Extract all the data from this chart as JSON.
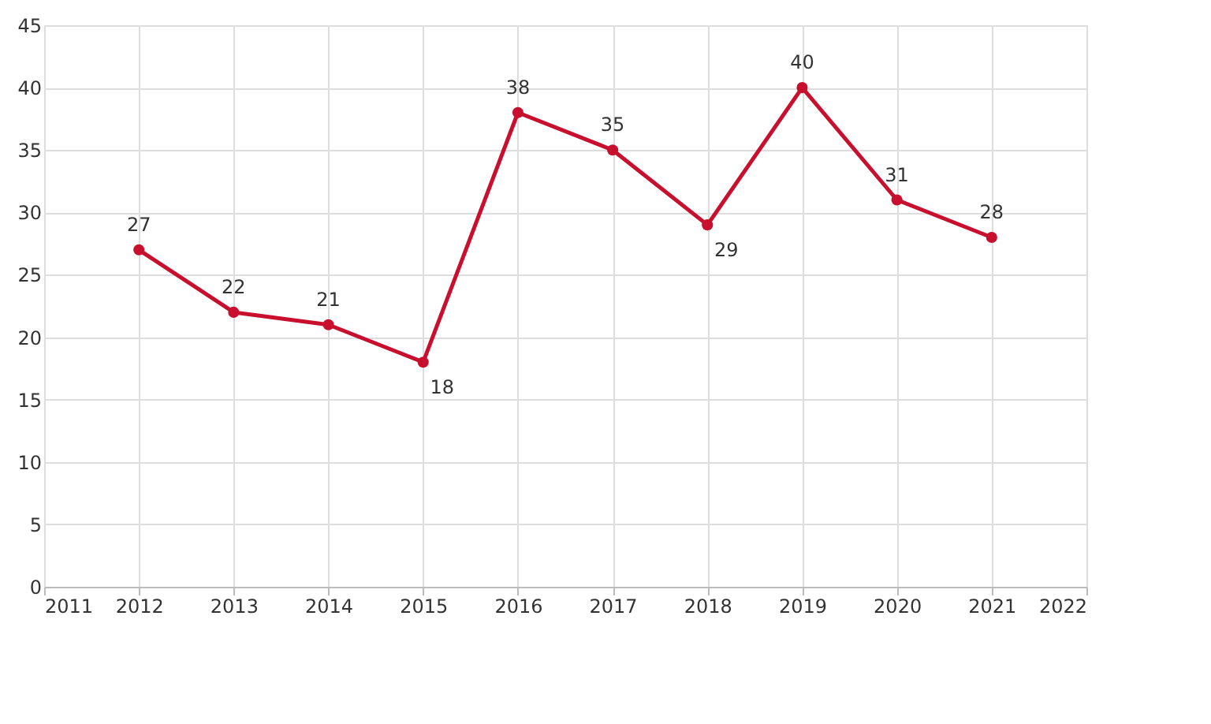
{
  "chart_data": {
    "type": "line",
    "x": [
      2012,
      2013,
      2014,
      2015,
      2016,
      2017,
      2018,
      2019,
      2020,
      2021
    ],
    "series": [
      {
        "color": "#c8102e",
        "values": [
          27,
          22,
          21,
          18,
          38,
          35,
          29,
          40,
          31,
          28
        ]
      }
    ],
    "xlim": [
      2011,
      2022
    ],
    "xticks": [
      2011,
      2012,
      2013,
      2014,
      2015,
      2016,
      2017,
      2018,
      2019,
      2020,
      2021,
      2022
    ],
    "ylim": [
      0,
      45
    ],
    "yticks": [
      0,
      5,
      10,
      15,
      20,
      25,
      30,
      35,
      40,
      45
    ],
    "grid": true,
    "marker": "circle",
    "line_style": "solid",
    "data_labels": true
  }
}
